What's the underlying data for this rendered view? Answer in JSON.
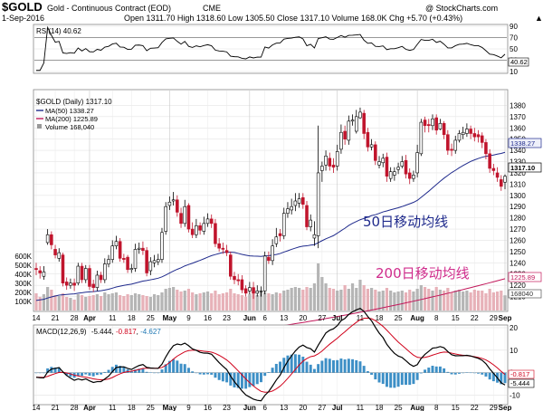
{
  "header": {
    "symbol": "$GOLD",
    "name": "Gold - Continuous Contract (EOD)",
    "exchange": "CME",
    "date": "1-Sep-2016",
    "quote": "Open 1311.70  High 1318.60  Low 1305.50  Close 1317.10  Volume 168.0K  Chg +5.70 (+0.43%)",
    "quote_arrow": "▲",
    "copyright": "@ StockCharts.com"
  },
  "rsi_panel": {
    "label": "RSI(14) 40.62",
    "value_badge": "40.62",
    "ticks": [
      "90",
      "70",
      "50",
      "30",
      "10"
    ]
  },
  "price_panel": {
    "label": "$GOLD (Daily) 1317.10",
    "legend": [
      {
        "text": "MA(50) 1338.27",
        "color": "#1f2a8c"
      },
      {
        "text": "MA(200) 1225.89",
        "color": "#c2185b"
      },
      {
        "text": "Volume 168,040",
        "color": "#777777"
      }
    ],
    "price_ticks": [
      "1380",
      "1370",
      "1360",
      "1350",
      "1340",
      "1330",
      "1320",
      "1310",
      "1300",
      "1290",
      "1280",
      "1270",
      "1260",
      "1250",
      "1240",
      "1230",
      "1220",
      "1210"
    ],
    "badges": {
      "ma50": "1338.27",
      "close": "1317.10",
      "ma200": "1225.89",
      "volume": "168040"
    },
    "volume_ticks": [
      "600K",
      "500K",
      "400K",
      "300K",
      "200K",
      "100K"
    ],
    "annotation_ma50": "50日移动均线",
    "annotation_ma200": "200日移动均线"
  },
  "macd_panel": {
    "label": "MACD(12,26,9)",
    "values": [
      "-5.444",
      "-0.817",
      "-4.627"
    ],
    "value_colors": [
      "#000000",
      "#d0021b",
      "#1f78b4"
    ],
    "ticks": [
      "20",
      "10",
      "0",
      "-10"
    ],
    "badges": [
      "-0.817",
      "-5.444"
    ]
  },
  "x_axis": {
    "labels": [
      "14",
      "21",
      "28",
      "Apr",
      "11",
      "18",
      "25",
      "May",
      "9",
      "16",
      "23",
      "Jun",
      "6",
      "13",
      "20",
      "27",
      "Jul",
      "11",
      "18",
      "25",
      "Aug",
      "8",
      "15",
      "22",
      "29",
      "Sep"
    ]
  },
  "colors": {
    "up": "#000000",
    "down": "#c0142c",
    "ma50": "#1f2a8c",
    "ma200": "#c2185b",
    "volume": "#b3b3b3",
    "macd": "#000000",
    "signal": "#d0021b",
    "histogram": "#3d8fc6"
  },
  "chart_data": {
    "type": "candlestick",
    "title": "$GOLD Gold - Continuous Contract (EOD) CME",
    "x": [
      "2016-03-14",
      "2016-03-15",
      "2016-03-16",
      "2016-03-17",
      "2016-03-18",
      "2016-03-21",
      "2016-03-22",
      "2016-03-23",
      "2016-03-24",
      "2016-03-25",
      "2016-03-28",
      "2016-03-29",
      "2016-03-30",
      "2016-03-31",
      "2016-04-01",
      "2016-04-04",
      "2016-04-05",
      "2016-04-06",
      "2016-04-07",
      "2016-04-08",
      "2016-04-11",
      "2016-04-12",
      "2016-04-13",
      "2016-04-14",
      "2016-04-15",
      "2016-04-18",
      "2016-04-19",
      "2016-04-20",
      "2016-04-21",
      "2016-04-22",
      "2016-04-25",
      "2016-04-26",
      "2016-04-27",
      "2016-04-28",
      "2016-04-29",
      "2016-05-02",
      "2016-05-03",
      "2016-05-04",
      "2016-05-05",
      "2016-05-06",
      "2016-05-09",
      "2016-05-10",
      "2016-05-11",
      "2016-05-12",
      "2016-05-13",
      "2016-05-16",
      "2016-05-17",
      "2016-05-18",
      "2016-05-19",
      "2016-05-20",
      "2016-05-23",
      "2016-05-24",
      "2016-05-25",
      "2016-05-26",
      "2016-05-27",
      "2016-05-30",
      "2016-05-31",
      "2016-06-01",
      "2016-06-02",
      "2016-06-03",
      "2016-06-06",
      "2016-06-07",
      "2016-06-08",
      "2016-06-09",
      "2016-06-10",
      "2016-06-13",
      "2016-06-14",
      "2016-06-15",
      "2016-06-16",
      "2016-06-17",
      "2016-06-20",
      "2016-06-21",
      "2016-06-22",
      "2016-06-23",
      "2016-06-24",
      "2016-06-27",
      "2016-06-28",
      "2016-06-29",
      "2016-06-30",
      "2016-07-01",
      "2016-07-04",
      "2016-07-05",
      "2016-07-06",
      "2016-07-07",
      "2016-07-08",
      "2016-07-11",
      "2016-07-12",
      "2016-07-13",
      "2016-07-14",
      "2016-07-15",
      "2016-07-18",
      "2016-07-19",
      "2016-07-20",
      "2016-07-21",
      "2016-07-22",
      "2016-07-25",
      "2016-07-26",
      "2016-07-27",
      "2016-07-28",
      "2016-07-29",
      "2016-08-01",
      "2016-08-02",
      "2016-08-03",
      "2016-08-04",
      "2016-08-05",
      "2016-08-08",
      "2016-08-09",
      "2016-08-10",
      "2016-08-11",
      "2016-08-12",
      "2016-08-15",
      "2016-08-16",
      "2016-08-17",
      "2016-08-18",
      "2016-08-19",
      "2016-08-22",
      "2016-08-23",
      "2016-08-24",
      "2016-08-25",
      "2016-08-26",
      "2016-08-29",
      "2016-08-30",
      "2016-08-31",
      "2016-09-01"
    ],
    "close": [
      1234,
      1231,
      1232,
      1265,
      1256,
      1247,
      1249,
      1222,
      1220,
      1222,
      1220,
      1237,
      1225,
      1235,
      1219,
      1218,
      1229,
      1225,
      1239,
      1243,
      1255,
      1259,
      1244,
      1243,
      1234,
      1235,
      1252,
      1253,
      1251,
      1231,
      1241,
      1242,
      1243,
      1267,
      1290,
      1294,
      1296,
      1285,
      1275,
      1290,
      1270,
      1265,
      1273,
      1269,
      1275,
      1279,
      1275,
      1257,
      1253,
      1252,
      1249,
      1228,
      1225,
      1224,
      1216,
      1213,
      1218,
      1213,
      1215,
      1215,
      1246,
      1242,
      1255,
      1263,
      1264,
      1284,
      1288,
      1290,
      1295,
      1297,
      1292,
      1272,
      1278,
      1265,
      1320,
      1326,
      1335,
      1326,
      1325,
      1339,
      1356,
      1350,
      1366,
      1367,
      1370,
      1374,
      1355,
      1343,
      1345,
      1331,
      1330,
      1333,
      1317,
      1321,
      1321,
      1325,
      1330,
      1319,
      1315,
      1318,
      1338,
      1365,
      1362,
      1362,
      1368,
      1358,
      1364,
      1354,
      1340,
      1340,
      1349,
      1355,
      1356,
      1359,
      1355,
      1352,
      1352,
      1347,
      1337,
      1324,
      1322,
      1316,
      1308,
      1317
    ],
    "open": [
      1235,
      1233,
      1228,
      1258,
      1265,
      1252,
      1244,
      1247,
      1223,
      1220,
      1222,
      1222,
      1237,
      1225,
      1235,
      1221,
      1218,
      1229,
      1225,
      1239,
      1243,
      1255,
      1259,
      1244,
      1245,
      1234,
      1235,
      1252,
      1253,
      1251,
      1233,
      1240,
      1241,
      1243,
      1268,
      1291,
      1295,
      1296,
      1284,
      1275,
      1291,
      1270,
      1265,
      1273,
      1268,
      1275,
      1279,
      1275,
      1257,
      1253,
      1251,
      1247,
      1228,
      1225,
      1225,
      1217,
      1215,
      1218,
      1213,
      1215,
      1215,
      1245,
      1242,
      1257,
      1266,
      1264,
      1284,
      1287,
      1291,
      1293,
      1298,
      1291,
      1272,
      1262,
      1264,
      1322,
      1327,
      1333,
      1327,
      1326,
      1341,
      1357,
      1349,
      1366,
      1357,
      1369,
      1373,
      1356,
      1343,
      1345,
      1327,
      1329,
      1334,
      1315,
      1318,
      1323,
      1326,
      1331,
      1320,
      1315,
      1320,
      1337,
      1367,
      1363,
      1362,
      1369,
      1359,
      1364,
      1354,
      1341,
      1340,
      1349,
      1354,
      1355,
      1359,
      1355,
      1354,
      1353,
      1347,
      1337,
      1324,
      1320,
      1314,
      1311.7
    ],
    "high": [
      1240,
      1237,
      1237,
      1270,
      1268,
      1256,
      1253,
      1249,
      1227,
      1226,
      1226,
      1240,
      1240,
      1238,
      1238,
      1225,
      1233,
      1232,
      1244,
      1247,
      1260,
      1264,
      1262,
      1248,
      1247,
      1239,
      1257,
      1258,
      1259,
      1254,
      1245,
      1247,
      1248,
      1271,
      1294,
      1299,
      1303,
      1300,
      1289,
      1296,
      1293,
      1276,
      1279,
      1276,
      1281,
      1284,
      1283,
      1279,
      1262,
      1258,
      1256,
      1250,
      1232,
      1230,
      1229,
      1220,
      1223,
      1223,
      1220,
      1219,
      1250,
      1250,
      1261,
      1271,
      1270,
      1289,
      1294,
      1297,
      1302,
      1302,
      1302,
      1295,
      1283,
      1277,
      1362,
      1330,
      1340,
      1338,
      1333,
      1345,
      1363,
      1362,
      1371,
      1372,
      1376,
      1378,
      1376,
      1360,
      1350,
      1348,
      1335,
      1337,
      1338,
      1325,
      1325,
      1329,
      1335,
      1336,
      1324,
      1322,
      1345,
      1368,
      1370,
      1368,
      1372,
      1372,
      1368,
      1366,
      1358,
      1346,
      1353,
      1358,
      1361,
      1364,
      1362,
      1360,
      1358,
      1356,
      1350,
      1341,
      1328,
      1325,
      1318,
      1318.6
    ],
    "low": [
      1229,
      1226,
      1225,
      1256,
      1252,
      1244,
      1241,
      1219,
      1216,
      1217,
      1215,
      1220,
      1222,
      1222,
      1216,
      1214,
      1215,
      1222,
      1222,
      1236,
      1240,
      1252,
      1241,
      1240,
      1231,
      1231,
      1232,
      1248,
      1247,
      1228,
      1229,
      1236,
      1238,
      1240,
      1265,
      1287,
      1291,
      1281,
      1271,
      1272,
      1267,
      1262,
      1262,
      1265,
      1265,
      1272,
      1271,
      1254,
      1250,
      1248,
      1246,
      1225,
      1221,
      1220,
      1213,
      1210,
      1212,
      1208,
      1210,
      1210,
      1212,
      1239,
      1238,
      1254,
      1259,
      1261,
      1280,
      1283,
      1286,
      1289,
      1288,
      1269,
      1268,
      1255,
      1253,
      1312,
      1322,
      1322,
      1320,
      1322,
      1337,
      1345,
      1345,
      1362,
      1355,
      1368,
      1350,
      1339,
      1340,
      1327,
      1324,
      1325,
      1312,
      1312,
      1313,
      1319,
      1324,
      1315,
      1310,
      1312,
      1316,
      1335,
      1356,
      1356,
      1358,
      1354,
      1358,
      1350,
      1336,
      1335,
      1337,
      1347,
      1350,
      1352,
      1350,
      1348,
      1347,
      1342,
      1332,
      1320,
      1318,
      1312,
      1304,
      1305.5
    ],
    "volume_k": [
      190,
      150,
      180,
      260,
      230,
      170,
      160,
      190,
      150,
      140,
      120,
      180,
      170,
      150,
      160,
      170,
      180,
      160,
      200,
      180,
      190,
      200,
      170,
      160,
      180,
      170,
      190,
      180,
      170,
      160,
      150,
      180,
      170,
      200,
      240,
      250,
      260,
      230,
      210,
      220,
      240,
      200,
      180,
      190,
      200,
      210,
      190,
      220,
      180,
      190,
      200,
      240,
      190,
      180,
      170,
      150,
      180,
      190,
      170,
      210,
      200,
      190,
      180,
      200,
      190,
      220,
      230,
      250,
      260,
      250,
      230,
      260,
      250,
      300,
      520,
      370,
      300,
      250,
      240,
      220,
      230,
      280,
      240,
      300,
      250,
      340,
      280,
      240,
      250,
      230,
      210,
      220,
      250,
      220,
      200,
      210,
      220,
      200,
      230,
      210,
      240,
      280,
      260,
      240,
      220,
      260,
      230,
      220,
      250,
      200,
      220,
      230,
      210,
      220,
      200,
      230,
      220,
      220,
      190,
      240,
      200,
      210,
      220,
      168
    ],
    "ma50": {
      "start": 1206,
      "end": 1338.27
    },
    "ma200": {
      "start": 1165,
      "end": 1225.89
    },
    "rsi14": {
      "last": 40.62,
      "levels": [
        70,
        30
      ]
    },
    "macd": {
      "macd": -5.444,
      "signal": -0.817,
      "histogram": -4.627
    },
    "y_range_price": [
      1200,
      1390
    ],
    "y_range_rsi": [
      10,
      90
    ],
    "y_range_macd": [
      -13,
      20
    ],
    "legend_position": "top-left",
    "grid": true
  }
}
